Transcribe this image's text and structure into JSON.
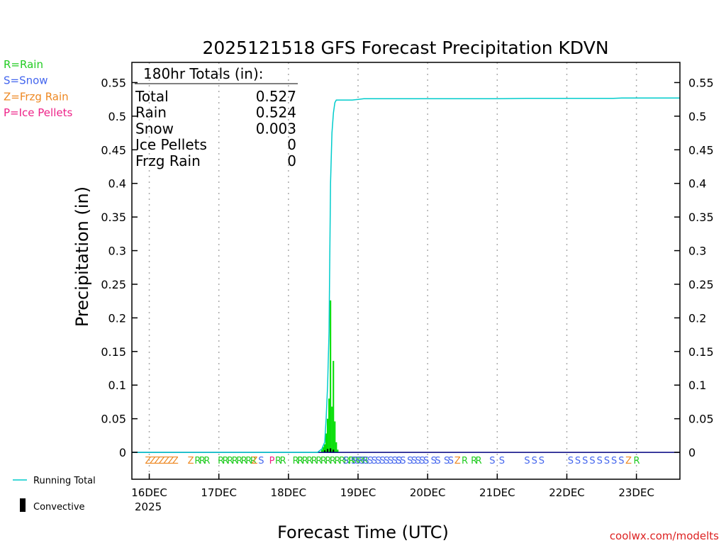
{
  "chart_data": {
    "type": "bar",
    "title": "2025121518 GFS Forecast Precipitation KDVN",
    "xlabel": "Forecast Time (UTC)",
    "ylabel": "Precipitation (in)",
    "ylim": [
      -0.04,
      0.58
    ],
    "yticks": [
      0,
      0.05,
      0.1,
      0.15,
      0.2,
      0.25,
      0.3,
      0.35,
      0.4,
      0.45,
      0.5,
      0.55
    ],
    "ytick_labels": [
      "0",
      "0.05",
      "0.1",
      "0.15",
      "0.2",
      "0.25",
      "0.3",
      "0.35",
      "0.4",
      "0.45",
      "0.5",
      "0.55"
    ],
    "xlim_hours": [
      -6,
      183
    ],
    "xticks": [
      {
        "hour": 0,
        "label": "16DEC"
      },
      {
        "hour": 24,
        "label": "17DEC"
      },
      {
        "hour": 48,
        "label": "18DEC"
      },
      {
        "hour": 72,
        "label": "19DEC"
      },
      {
        "hour": 96,
        "label": "20DEC"
      },
      {
        "hour": 120,
        "label": "21DEC"
      },
      {
        "hour": 144,
        "label": "22DEC"
      },
      {
        "hour": 168,
        "label": "23DEC"
      }
    ],
    "year_label": "2025",
    "grid": "vertical dotted at day boundaries",
    "precip_bars": [
      {
        "hour": 59.5,
        "value": 0.004
      },
      {
        "hour": 60.0,
        "value": 0.008
      },
      {
        "hour": 60.5,
        "value": 0.012
      },
      {
        "hour": 61.0,
        "value": 0.028
      },
      {
        "hour": 61.5,
        "value": 0.05
      },
      {
        "hour": 62.0,
        "value": 0.08
      },
      {
        "hour": 62.5,
        "value": 0.226
      },
      {
        "hour": 63.0,
        "value": 0.068
      },
      {
        "hour": 63.5,
        "value": 0.136
      },
      {
        "hour": 64.0,
        "value": 0.046
      },
      {
        "hour": 64.5,
        "value": 0.015
      },
      {
        "hour": 65.0,
        "value": 0.004
      }
    ],
    "convective_bars": [
      {
        "hour": 60.5,
        "value": 0.003
      },
      {
        "hour": 61.5,
        "value": 0.005
      },
      {
        "hour": 62.5,
        "value": 0.006
      },
      {
        "hour": 63.5,
        "value": 0.004
      }
    ],
    "running_total": [
      {
        "hour": -6,
        "value": 0
      },
      {
        "hour": 58,
        "value": 0
      },
      {
        "hour": 59.5,
        "value": 0.005
      },
      {
        "hour": 60.5,
        "value": 0.015
      },
      {
        "hour": 61.0,
        "value": 0.05
      },
      {
        "hour": 61.5,
        "value": 0.1
      },
      {
        "hour": 62.0,
        "value": 0.18
      },
      {
        "hour": 62.5,
        "value": 0.4
      },
      {
        "hour": 63.0,
        "value": 0.475
      },
      {
        "hour": 63.5,
        "value": 0.505
      },
      {
        "hour": 64.0,
        "value": 0.52
      },
      {
        "hour": 64.5,
        "value": 0.524
      },
      {
        "hour": 70,
        "value": 0.524
      },
      {
        "hour": 72,
        "value": 0.525
      },
      {
        "hour": 74,
        "value": 0.526
      },
      {
        "hour": 120,
        "value": 0.526
      },
      {
        "hour": 130,
        "value": 0.5265
      },
      {
        "hour": 160,
        "value": 0.5265
      },
      {
        "hour": 163,
        "value": 0.527
      },
      {
        "hour": 183,
        "value": 0.527
      }
    ],
    "precip_type_groups": [
      {
        "hour": 4,
        "text": "ZZZZZZZ",
        "type": "Z"
      },
      {
        "hour": 14,
        "text": "Z",
        "type": "Z"
      },
      {
        "hour": 18,
        "text": "RRR",
        "type": "R"
      },
      {
        "hour": 30,
        "text": "RRRRRRRR",
        "type": "R"
      },
      {
        "hour": 36,
        "text": "Z",
        "type": "Z"
      },
      {
        "hour": 38.3,
        "text": "S",
        "type": "S"
      },
      {
        "hour": 42,
        "text": "P",
        "type": "P"
      },
      {
        "hour": 45,
        "text": "RR",
        "type": "R"
      },
      {
        "hour": 51,
        "text": "RR",
        "type": "R"
      },
      {
        "hour": 63,
        "text": "RRRRRRRRRRRRRRR",
        "type": "R"
      },
      {
        "hour": 67.5,
        "text": "S",
        "type": "S"
      },
      {
        "hour": 69.5,
        "text": "R",
        "type": "R"
      },
      {
        "hour": 78,
        "text": "SSSSSSSSSSSS",
        "type": "S"
      },
      {
        "hour": 86.5,
        "text": "SS",
        "type": "S"
      },
      {
        "hour": 91,
        "text": "SSS",
        "type": "S"
      },
      {
        "hour": 94.5,
        "text": "SS",
        "type": "S"
      },
      {
        "hour": 98.5,
        "text": "SS",
        "type": "S"
      },
      {
        "hour": 103,
        "text": "SS",
        "type": "S"
      },
      {
        "hour": 106,
        "text": "Z",
        "type": "Z"
      },
      {
        "hour": 108.5,
        "text": "R",
        "type": "R"
      },
      {
        "hour": 112.5,
        "text": "RR",
        "type": "R"
      },
      {
        "hour": 118,
        "text": "S",
        "type": "S"
      },
      {
        "hour": 121.3,
        "text": "S",
        "type": "S"
      },
      {
        "hour": 130,
        "text": "S",
        "type": "S"
      },
      {
        "hour": 132.5,
        "text": "S",
        "type": "S"
      },
      {
        "hour": 135,
        "text": "S",
        "type": "S"
      },
      {
        "hour": 145,
        "text": "S",
        "type": "S"
      },
      {
        "hour": 147.5,
        "text": "S",
        "type": "S"
      },
      {
        "hour": 150,
        "text": "S",
        "type": "S"
      },
      {
        "hour": 152.5,
        "text": "S",
        "type": "S"
      },
      {
        "hour": 155,
        "text": "S",
        "type": "S"
      },
      {
        "hour": 157.5,
        "text": "S",
        "type": "S"
      },
      {
        "hour": 160,
        "text": "S",
        "type": "S"
      },
      {
        "hour": 162.5,
        "text": "S",
        "type": "S"
      },
      {
        "hour": 165,
        "text": "Z",
        "type": "Z"
      },
      {
        "hour": 167.8,
        "text": "R",
        "type": "R"
      }
    ],
    "totals_box": {
      "heading": "180hr Totals (in):",
      "rows": [
        {
          "label": "Total",
          "value": "0.527"
        },
        {
          "label": "Rain",
          "value": "0.524"
        },
        {
          "label": "Snow",
          "value": "0.003"
        },
        {
          "label": "Ice Pellets",
          "value": "0"
        },
        {
          "label": "Frzg Rain",
          "value": "0"
        }
      ]
    },
    "type_legend": [
      {
        "key": "R",
        "text": "R=Rain",
        "color": "#22cc22"
      },
      {
        "key": "S",
        "text": "S=Snow",
        "color": "#4466ee"
      },
      {
        "key": "Z",
        "text": "Z=Frzg Rain",
        "color": "#ee8822"
      },
      {
        "key": "P",
        "text": "P=Ice Pellets",
        "color": "#ee2288"
      }
    ],
    "series_legend": {
      "running_total": "Running Total",
      "convective": "Convective"
    },
    "colors": {
      "precip": "#00dd00",
      "running_total": "#00cccc",
      "convective": "#000000",
      "zero_line": "#000080",
      "credit": "#dd2222"
    },
    "credit": "coolwx.com/modelts"
  }
}
